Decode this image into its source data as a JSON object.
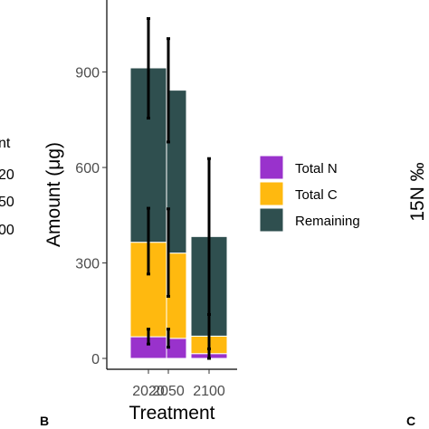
{
  "chart_data": {
    "type": "bar",
    "stacked": true,
    "ylabel": "Amount (μg)",
    "xlabel": "Treatment",
    "categories": [
      "2020",
      "2050",
      "2100"
    ],
    "ylim": [
      0,
      1120
    ],
    "yticks": [
      0,
      300,
      600,
      900
    ],
    "series": [
      {
        "name": "Total N",
        "values": [
          68,
          63,
          15
        ],
        "color": "#9932CC"
      },
      {
        "name": "Total C",
        "values": [
          297,
          268,
          55
        ],
        "color": "#FFB90F"
      },
      {
        "name": "Remaining",
        "values": [
          548,
          512,
          313
        ],
        "color": "#2F4F4F"
      }
    ],
    "error_bars": [
      {
        "category": "2020",
        "at": 68,
        "low": 45,
        "high": 92
      },
      {
        "category": "2020",
        "at": 365,
        "low": 265,
        "high": 472
      },
      {
        "category": "2020",
        "at": 913,
        "low": 755,
        "high": 1068
      },
      {
        "category": "2050",
        "at": 63,
        "low": 35,
        "high": 92
      },
      {
        "category": "2050",
        "at": 331,
        "low": 195,
        "high": 470
      },
      {
        "category": "2050",
        "at": 843,
        "low": 680,
        "high": 1005
      },
      {
        "category": "2100",
        "at": 15,
        "low": 0,
        "high": 30
      },
      {
        "category": "2100",
        "at": 70,
        "low": 0,
        "high": 138
      },
      {
        "category": "2100",
        "at": 383,
        "low": 0,
        "high": 628
      }
    ],
    "legend_position": "right",
    "grid": false
  },
  "edge_text": {
    "left_lines": [
      "nt",
      "20",
      "50",
      "00"
    ],
    "panel_b": "B",
    "panel_c": "C",
    "right_label": "15N ‰"
  }
}
